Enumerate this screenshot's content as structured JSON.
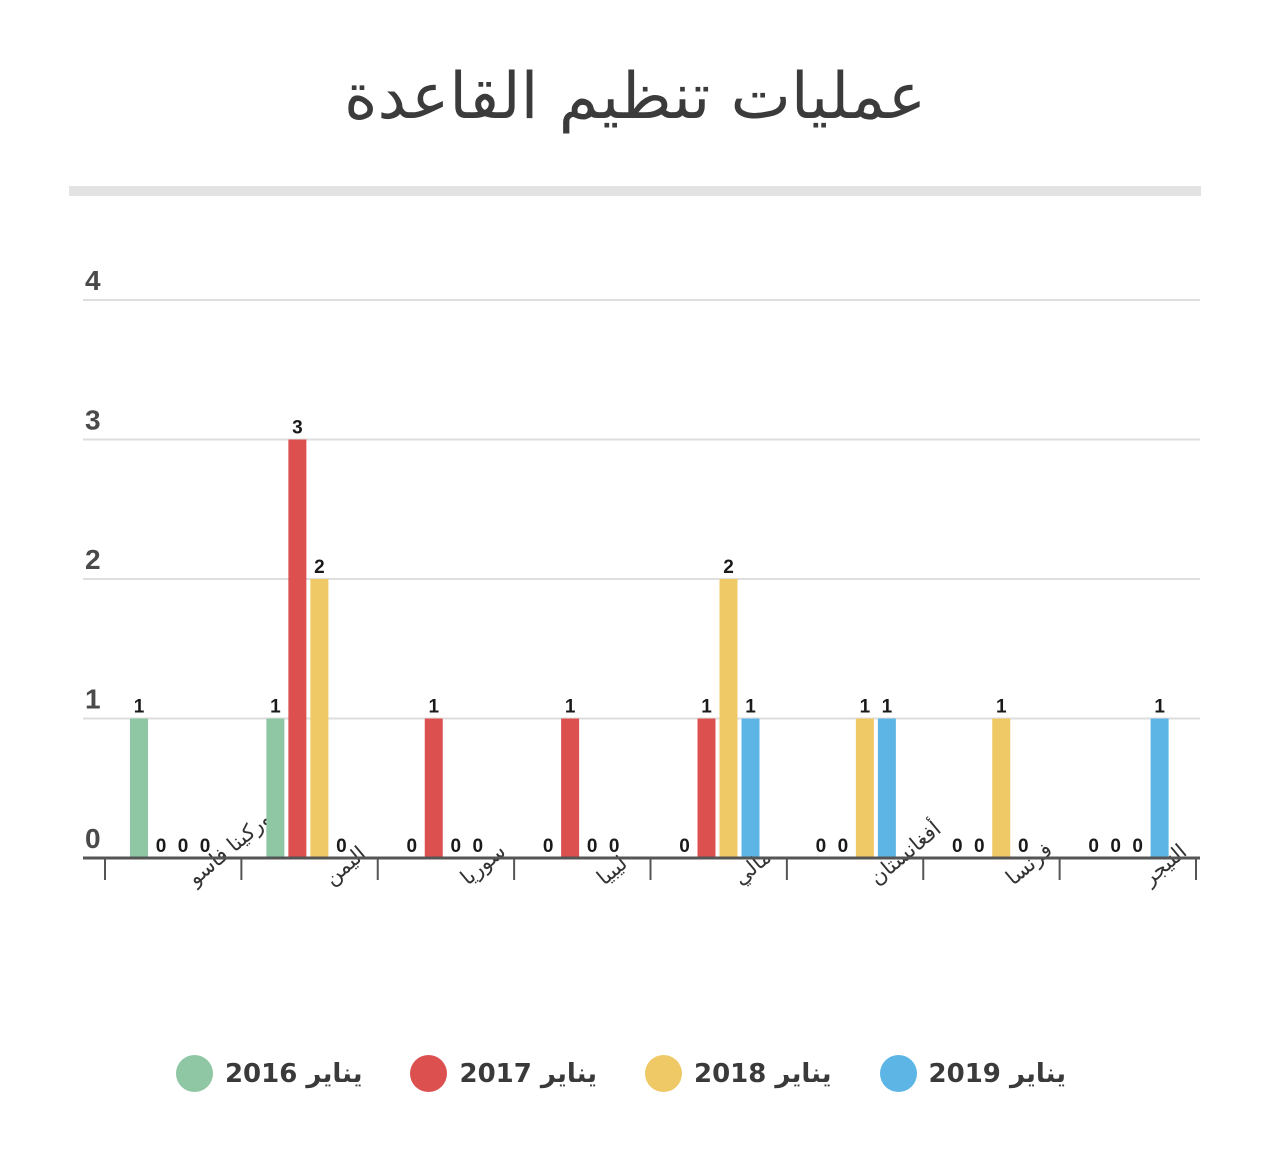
{
  "chart_data": {
    "type": "bar",
    "title": "عمليات تنظيم القاعدة",
    "xlabel": "",
    "ylabel": "",
    "ylim": [
      0,
      4
    ],
    "yticks": [
      0,
      1,
      2,
      3,
      4
    ],
    "grid": true,
    "legend_position": "bottom",
    "categories": [
      "بوركينا فاسو",
      "اليمن",
      "سوريا",
      "ليبيا",
      "مالي",
      "أفغانستان",
      "فرنسا",
      "النيجر"
    ],
    "series": [
      {
        "name": "يناير 2016",
        "color": "#8fc6a4",
        "values": [
          1,
          1,
          0,
          0,
          0,
          0,
          0,
          0
        ]
      },
      {
        "name": "يناير 2017",
        "color": "#dc5050",
        "values": [
          0,
          3,
          1,
          1,
          1,
          0,
          0,
          0
        ]
      },
      {
        "name": "يناير 2018",
        "color": "#efc965",
        "values": [
          0,
          2,
          0,
          0,
          2,
          1,
          1,
          0
        ]
      },
      {
        "name": "يناير 2019",
        "color": "#5db5e6",
        "values": [
          0,
          0,
          0,
          0,
          1,
          1,
          0,
          1
        ]
      }
    ]
  }
}
